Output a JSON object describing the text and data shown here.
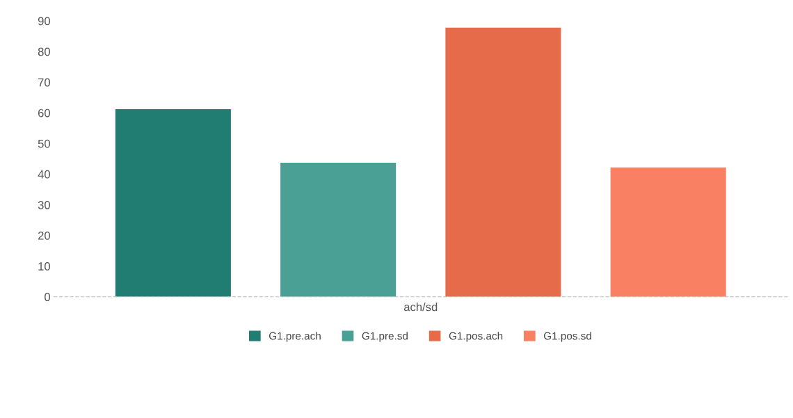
{
  "chart_data": {
    "type": "bar",
    "categories": [
      "ach/sd"
    ],
    "series": [
      {
        "name": "G1.pre.ach",
        "color": "#217c71",
        "values": [
          61.2
        ]
      },
      {
        "name": "G1.pre.sd",
        "color": "#4aa095",
        "values": [
          43.7
        ]
      },
      {
        "name": "G1.pos.ach",
        "color": "#e56b4b",
        "values": [
          87.8
        ]
      },
      {
        "name": "G1.pos.sd",
        "color": "#f98063",
        "values": [
          42.2
        ]
      }
    ],
    "ylim": [
      0,
      90
    ],
    "yticks": [
      0,
      10,
      20,
      30,
      40,
      50,
      60,
      70,
      80,
      90
    ],
    "grid": false,
    "legend": "bottom"
  }
}
